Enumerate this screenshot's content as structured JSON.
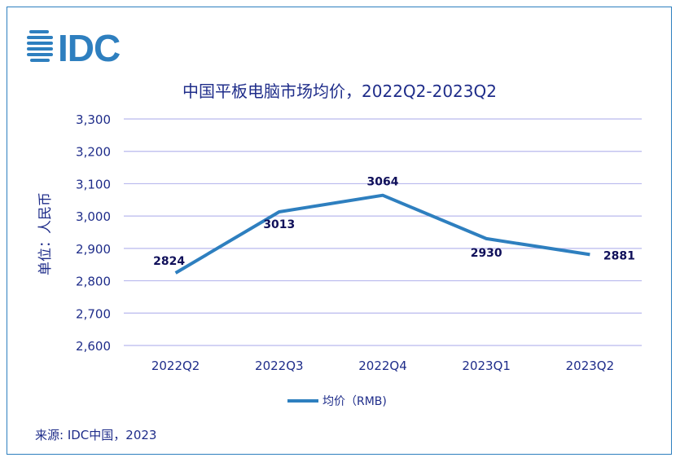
{
  "logo": {
    "text": "IDC"
  },
  "chart_data": {
    "type": "line",
    "title": "中国平板电脑市场均价，2022Q2-2023Q2",
    "ylabel": "单位：人民币",
    "xlabel": "",
    "categories": [
      "2022Q2",
      "2022Q3",
      "2022Q4",
      "2023Q1",
      "2023Q2"
    ],
    "series": [
      {
        "name": "均价（RMB)",
        "values": [
          2824,
          3013,
          3064,
          2930,
          2881
        ]
      }
    ],
    "data_labels": [
      "2824",
      "3013",
      "3064",
      "2930",
      "2881"
    ],
    "ylim": [
      2600,
      3300
    ],
    "yticks": [
      2600,
      2700,
      2800,
      2900,
      3000,
      3100,
      3200,
      3300
    ],
    "ytick_labels": [
      "2,600",
      "2,700",
      "2,800",
      "2,900",
      "3,000",
      "3,100",
      "3,200",
      "3,300"
    ],
    "grid": true,
    "legend": "bottom",
    "colors": {
      "line": "#2e7fbf",
      "grid": "#b9b9ee",
      "text": "#1f2d8a",
      "label": "#10105a"
    }
  },
  "footer": {
    "source": "来源: IDC中国，2023"
  }
}
